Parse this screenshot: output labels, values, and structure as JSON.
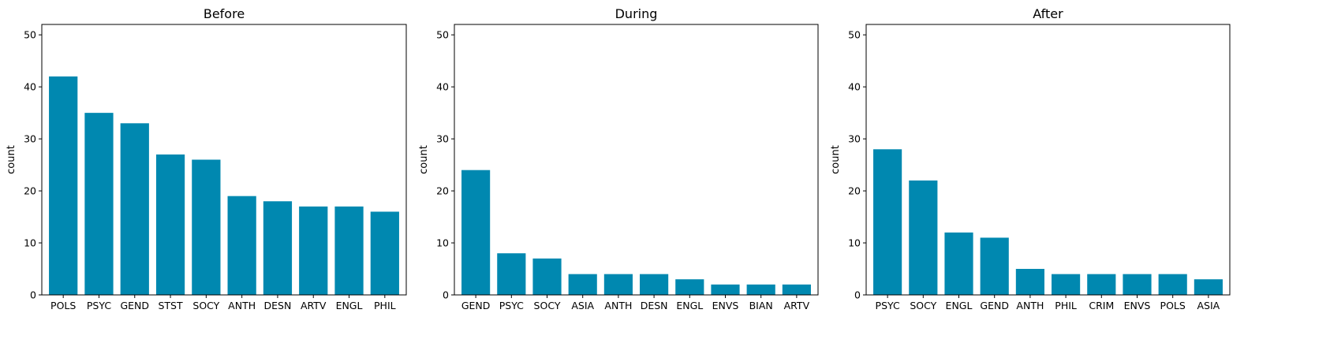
{
  "figure": {
    "bar_color": "#0088B0"
  },
  "chart_data": [
    {
      "type": "bar",
      "title": "Before",
      "xlabel": "",
      "ylabel": "count",
      "ylim": [
        0,
        52
      ],
      "yticks": [
        0,
        10,
        20,
        30,
        40,
        50
      ],
      "categories": [
        "POLS",
        "PSYC",
        "GEND",
        "STST",
        "SOCY",
        "ANTH",
        "DESN",
        "ARTV",
        "ENGL",
        "PHIL"
      ],
      "values": [
        42,
        35,
        33,
        27,
        26,
        19,
        18,
        17,
        17,
        16
      ]
    },
    {
      "type": "bar",
      "title": "During",
      "xlabel": "",
      "ylabel": "count",
      "ylim": [
        0,
        52
      ],
      "yticks": [
        0,
        10,
        20,
        30,
        40,
        50
      ],
      "categories": [
        "GEND",
        "PSYC",
        "SOCY",
        "ASIA",
        "ANTH",
        "DESN",
        "ENGL",
        "ENVS",
        "BIAN",
        "ARTV"
      ],
      "values": [
        24,
        8,
        7,
        4,
        4,
        4,
        3,
        2,
        2,
        2
      ]
    },
    {
      "type": "bar",
      "title": "After",
      "xlabel": "",
      "ylabel": "count",
      "ylim": [
        0,
        52
      ],
      "yticks": [
        0,
        10,
        20,
        30,
        40,
        50
      ],
      "categories": [
        "PSYC",
        "SOCY",
        "ENGL",
        "GEND",
        "ANTH",
        "PHIL",
        "CRIM",
        "ENVS",
        "POLS",
        "ASIA"
      ],
      "values": [
        28,
        22,
        12,
        11,
        5,
        4,
        4,
        4,
        4,
        3
      ]
    }
  ]
}
